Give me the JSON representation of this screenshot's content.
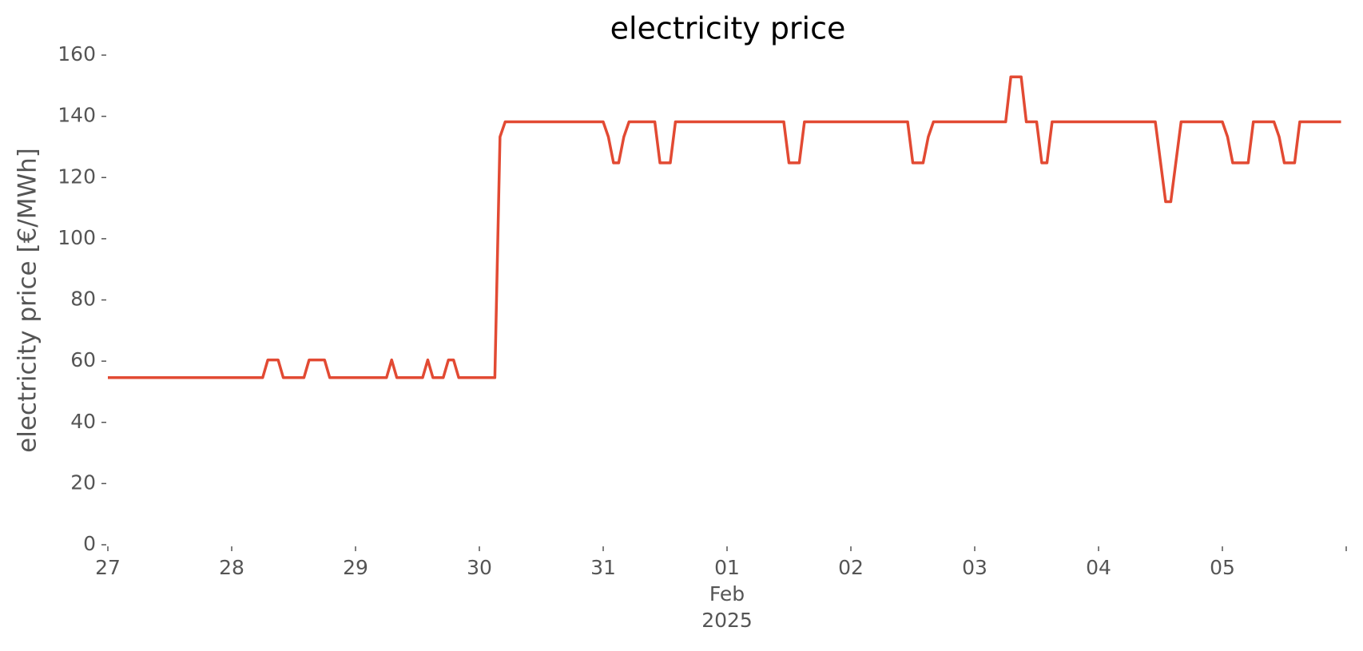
{
  "chart_data": {
    "type": "line",
    "title": "electricity price",
    "y_label": "electricity price [€/MWh]",
    "color": "#e24a33",
    "grid": false,
    "x": [
      "2025-01-27T00:00",
      "2025-01-28T06:00",
      "2025-01-28T07:00",
      "2025-01-28T09:00",
      "2025-01-28T10:00",
      "2025-01-28T14:00",
      "2025-01-28T15:00",
      "2025-01-28T18:00",
      "2025-01-28T19:00",
      "2025-01-29T06:00",
      "2025-01-29T07:00",
      "2025-01-29T08:00",
      "2025-01-29T13:00",
      "2025-01-29T14:00",
      "2025-01-29T15:00",
      "2025-01-29T17:00",
      "2025-01-29T18:00",
      "2025-01-29T19:00",
      "2025-01-29T20:00",
      "2025-01-30T03:00",
      "2025-01-30T04:00",
      "2025-01-30T05:00",
      "2025-01-31T00:00",
      "2025-01-31T01:00",
      "2025-01-31T02:00",
      "2025-01-31T03:00",
      "2025-01-31T04:00",
      "2025-01-31T05:00",
      "2025-01-31T10:00",
      "2025-01-31T11:00",
      "2025-01-31T13:00",
      "2025-01-31T14:00",
      "2025-02-01T11:00",
      "2025-02-01T12:00",
      "2025-02-01T14:00",
      "2025-02-01T15:00",
      "2025-02-02T11:00",
      "2025-02-02T12:00",
      "2025-02-02T14:00",
      "2025-02-02T15:00",
      "2025-02-02T16:00",
      "2025-02-03T06:00",
      "2025-02-03T07:00",
      "2025-02-03T09:00",
      "2025-02-03T10:00",
      "2025-02-03T12:00",
      "2025-02-03T13:00",
      "2025-02-03T14:00",
      "2025-02-03T15:00",
      "2025-02-04T11:00",
      "2025-02-04T13:00",
      "2025-02-04T14:00",
      "2025-02-04T16:00",
      "2025-02-05T00:00",
      "2025-02-05T01:00",
      "2025-02-05T02:00",
      "2025-02-05T05:00",
      "2025-02-05T06:00",
      "2025-02-05T10:00",
      "2025-02-05T11:00",
      "2025-02-05T12:00",
      "2025-02-05T14:00",
      "2025-02-05T15:00",
      "2025-02-05T23:00"
    ],
    "values": [
      54.6,
      54.6,
      60.4,
      60.4,
      54.6,
      54.6,
      60.4,
      60.4,
      54.6,
      54.6,
      60.4,
      54.6,
      54.6,
      60.4,
      54.6,
      54.6,
      60.4,
      60.4,
      54.6,
      54.6,
      133.3,
      138.2,
      138.2,
      133.3,
      124.8,
      124.8,
      133.3,
      138.2,
      138.2,
      124.8,
      124.8,
      138.2,
      138.2,
      124.8,
      124.8,
      138.2,
      138.2,
      124.8,
      124.8,
      133.3,
      138.2,
      138.2,
      152.9,
      152.9,
      138.2,
      138.2,
      124.8,
      124.8,
      138.2,
      138.2,
      112.1,
      112.1,
      138.2,
      138.2,
      133.3,
      124.8,
      124.8,
      138.2,
      138.2,
      133.3,
      124.8,
      124.8,
      138.2,
      138.2
    ],
    "xlim": [
      "2025-01-27T00:00",
      "2025-02-06T00:00"
    ],
    "xticks": [
      {
        "value": "2025-01-27T00:00",
        "label": "27"
      },
      {
        "value": "2025-01-28T00:00",
        "label": "28"
      },
      {
        "value": "2025-01-29T00:00",
        "label": "29"
      },
      {
        "value": "2025-01-30T00:00",
        "label": "30"
      },
      {
        "value": "2025-01-31T00:00",
        "label": "31"
      },
      {
        "value": "2025-02-01T00:00",
        "label": "01"
      },
      {
        "value": "2025-02-02T00:00",
        "label": "02"
      },
      {
        "value": "2025-02-03T00:00",
        "label": "03"
      },
      {
        "value": "2025-02-04T00:00",
        "label": "04"
      },
      {
        "value": "2025-02-05T00:00",
        "label": "05"
      },
      {
        "value": "2025-02-06T00:00",
        "label": null
      }
    ],
    "x_month_label": "Feb",
    "x_year_label": "2025",
    "ylim": [
      0,
      160
    ],
    "yticks": [
      0,
      20,
      40,
      60,
      80,
      100,
      120,
      140,
      160
    ]
  }
}
